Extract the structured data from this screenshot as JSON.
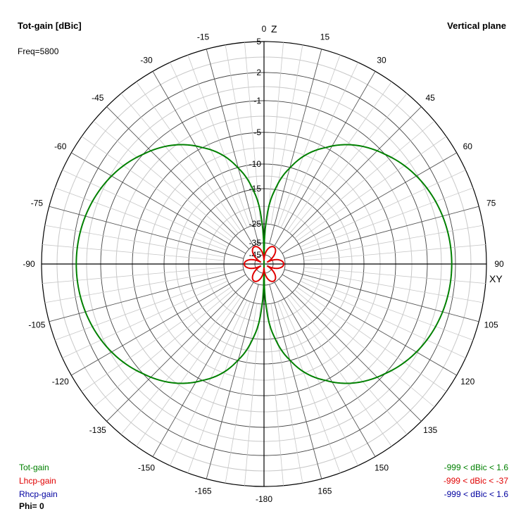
{
  "header": {
    "title": "Tot-gain [dBic]",
    "freq": "Freq=5800",
    "plane": "Vertical plane"
  },
  "legend": {
    "items": [
      {
        "label": "Tot-gain",
        "range": "-999 < dBic < 1.6",
        "color": "#008000"
      },
      {
        "label": "Lhcp-gain",
        "range": "-999 < dBic < -37",
        "color": "#e00000"
      },
      {
        "label": "Rhcp-gain",
        "range": "-999 < dBic < 1.6",
        "color": "#0000a0"
      }
    ],
    "phi": "Phi= 0"
  },
  "chart_data": {
    "type": "polar",
    "title": "Tot-gain [dBic]",
    "plane": "Vertical plane",
    "axis_labels": {
      "z": "Z",
      "xy": "XY"
    },
    "angle_ticks": [
      "0",
      "15",
      "30",
      "45",
      "60",
      "75",
      "90",
      "105",
      "120",
      "135",
      "150",
      "165",
      "-180",
      "-165",
      "-150",
      "-135",
      "-120",
      "-105",
      "-90",
      "-75",
      "-60",
      "-45",
      "-30",
      "-15"
    ],
    "angle_values": [
      0,
      15,
      30,
      45,
      60,
      75,
      90,
      105,
      120,
      135,
      150,
      165,
      180,
      195,
      210,
      225,
      240,
      255,
      270,
      285,
      300,
      315,
      330,
      345
    ],
    "radial_ticks": [
      5,
      2,
      -1,
      -5,
      -10,
      -15,
      -25,
      -35,
      -45
    ],
    "radial_labels": [
      "5",
      "2",
      "-1",
      "-5",
      "-10",
      "-15",
      "-25",
      "-35",
      "-45"
    ],
    "series": [
      {
        "name": "Tot-gain",
        "color": "#008000",
        "shape": "sin_theta_dipole",
        "peak_dbic": 1.6,
        "theta_deg": [
          0,
          5,
          10,
          20,
          30,
          40,
          50,
          60,
          70,
          80,
          90
        ],
        "gain_dbic": [
          -999,
          -19.6,
          -13.6,
          -7.7,
          -4.4,
          -2.3,
          -0.8,
          0.3,
          1.1,
          1.5,
          1.6
        ]
      },
      {
        "name": "Lhcp-gain",
        "color": "#e00000",
        "shape": "six_lobe",
        "peak_dbic": -37,
        "theta_deg": [
          0,
          15,
          30,
          45,
          60,
          75,
          90
        ],
        "gain_dbic": [
          -40,
          -48,
          -38,
          -48,
          -40,
          -48,
          -38
        ]
      },
      {
        "name": "Rhcp-gain",
        "color": "#0000a0",
        "shape": "sin_theta_dipole",
        "peak_dbic": 1.6
      }
    ]
  }
}
